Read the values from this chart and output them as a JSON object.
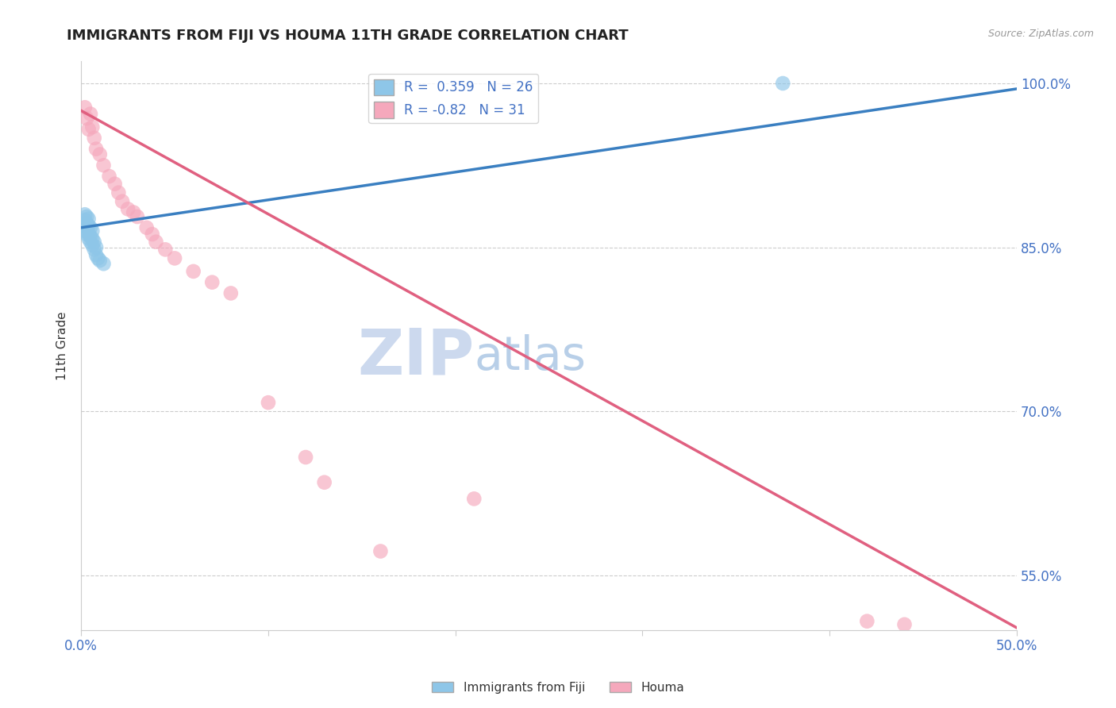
{
  "title": "IMMIGRANTS FROM FIJI VS HOUMA 11TH GRADE CORRELATION CHART",
  "source_text": "Source: ZipAtlas.com",
  "ylabel": "11th Grade",
  "xlim": [
    0.0,
    0.5
  ],
  "ylim": [
    0.5,
    1.02
  ],
  "xticks": [
    0.0,
    0.1,
    0.2,
    0.3,
    0.4,
    0.5
  ],
  "xtick_labels": [
    "0.0%",
    "",
    "",
    "",
    "",
    "50.0%"
  ],
  "ytick_vals": [
    0.55,
    0.7,
    0.85,
    1.0
  ],
  "ytick_labels_right": [
    "55.0%",
    "70.0%",
    "85.0%",
    "100.0%"
  ],
  "fiji_R": 0.359,
  "fiji_N": 26,
  "houma_R": -0.82,
  "houma_N": 31,
  "fiji_color": "#8ec6e8",
  "houma_color": "#f5a8bc",
  "fiji_line_color": "#3a7fc1",
  "houma_line_color": "#e06080",
  "watermark_zip": "ZIP",
  "watermark_atlas": "atlas",
  "watermark_color": "#ccd9ee",
  "fiji_scatter_x": [
    0.001,
    0.002,
    0.002,
    0.002,
    0.003,
    0.003,
    0.003,
    0.003,
    0.004,
    0.004,
    0.004,
    0.004,
    0.005,
    0.005,
    0.005,
    0.006,
    0.006,
    0.006,
    0.007,
    0.007,
    0.008,
    0.008,
    0.009,
    0.01,
    0.012,
    0.375
  ],
  "fiji_scatter_y": [
    0.87,
    0.865,
    0.875,
    0.88,
    0.862,
    0.868,
    0.872,
    0.878,
    0.858,
    0.863,
    0.87,
    0.876,
    0.855,
    0.86,
    0.868,
    0.852,
    0.858,
    0.865,
    0.848,
    0.855,
    0.843,
    0.85,
    0.84,
    0.838,
    0.835,
    1.0
  ],
  "houma_scatter_x": [
    0.002,
    0.003,
    0.004,
    0.005,
    0.006,
    0.007,
    0.008,
    0.01,
    0.012,
    0.015,
    0.018,
    0.02,
    0.022,
    0.025,
    0.028,
    0.03,
    0.035,
    0.038,
    0.04,
    0.045,
    0.05,
    0.06,
    0.07,
    0.08,
    0.1,
    0.12,
    0.13,
    0.16,
    0.21,
    0.42,
    0.44
  ],
  "houma_scatter_y": [
    0.978,
    0.968,
    0.958,
    0.972,
    0.96,
    0.95,
    0.94,
    0.935,
    0.925,
    0.915,
    0.908,
    0.9,
    0.892,
    0.885,
    0.882,
    0.878,
    0.868,
    0.862,
    0.855,
    0.848,
    0.84,
    0.828,
    0.818,
    0.808,
    0.708,
    0.658,
    0.635,
    0.572,
    0.62,
    0.508,
    0.505
  ],
  "fiji_line_x0": 0.0,
  "fiji_line_y0": 0.868,
  "fiji_line_x1": 0.5,
  "fiji_line_y1": 0.995,
  "houma_line_x0": 0.0,
  "houma_line_y0": 0.975,
  "houma_line_x1": 0.5,
  "houma_line_y1": 0.502
}
